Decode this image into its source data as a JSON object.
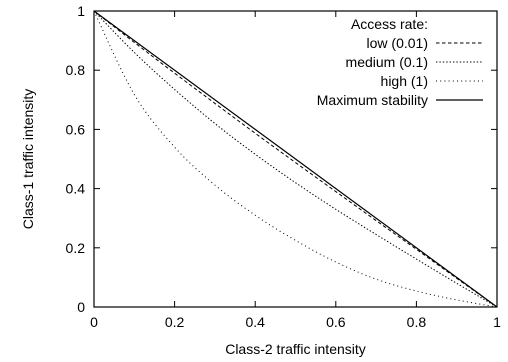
{
  "chart_data": {
    "type": "line",
    "title": "",
    "xlabel": "Class-2 traffic intensity",
    "ylabel": "Class-1 traffic intensity",
    "xlim": [
      0,
      1
    ],
    "ylim": [
      0,
      1
    ],
    "xticks": [
      "0",
      "0.2",
      "0.4",
      "0.6",
      "0.8",
      "1"
    ],
    "yticks": [
      "0",
      "0.2",
      "0.4",
      "0.6",
      "0.8",
      "1"
    ],
    "grid": false,
    "legend": {
      "title": "Access rate:",
      "placement": "top-right"
    },
    "series": [
      {
        "name": "low (0.01)",
        "style": "dashed",
        "x": [
          0,
          0.1,
          0.2,
          0.3,
          0.4,
          0.5,
          0.6,
          0.7,
          0.8,
          0.9,
          1.0
        ],
        "y": [
          1,
          0.894,
          0.79,
          0.688,
          0.587,
          0.488,
          0.39,
          0.292,
          0.195,
          0.097,
          0
        ]
      },
      {
        "name": "medium (0.1)",
        "style": "dotted",
        "x": [
          0,
          0.1,
          0.2,
          0.3,
          0.4,
          0.5,
          0.6,
          0.7,
          0.8,
          0.9,
          1.0
        ],
        "y": [
          1,
          0.86,
          0.735,
          0.62,
          0.516,
          0.42,
          0.33,
          0.245,
          0.162,
          0.08,
          0
        ]
      },
      {
        "name": "high (1)",
        "style": "sparse-dotted",
        "x": [
          0,
          0.1,
          0.2,
          0.3,
          0.4,
          0.5,
          0.6,
          0.7,
          0.8,
          0.9,
          1.0
        ],
        "y": [
          1,
          0.718,
          0.54,
          0.412,
          0.31,
          0.225,
          0.152,
          0.094,
          0.054,
          0.024,
          0
        ]
      },
      {
        "name": "Maximum stability",
        "style": "solid",
        "x": [
          0,
          1
        ],
        "y": [
          1,
          0
        ]
      }
    ]
  }
}
